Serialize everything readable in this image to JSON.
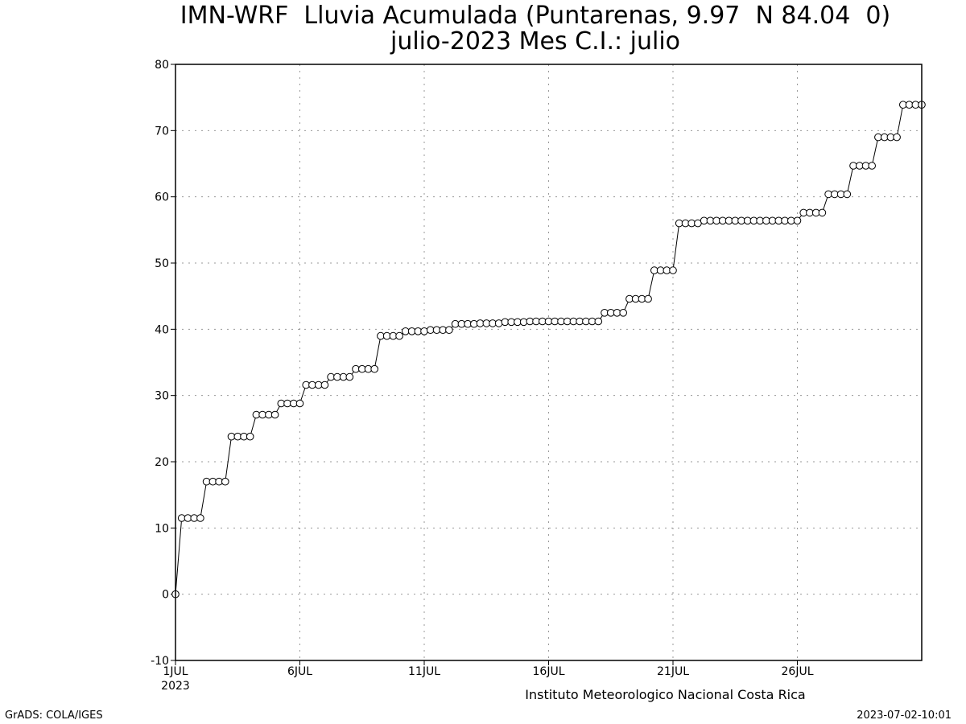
{
  "title_line1": "IMN-WRF  Lluvia Acumulada (Puntarenas, 9.97  N 84.04  0)",
  "title_line2": "julio-2023 Mes C.I.: julio",
  "footer_left": "GrADS: COLA/IGES",
  "footer_right": "2023-07-02-10:01",
  "chart_data": {
    "type": "line",
    "title": "IMN-WRF  Lluvia Acumulada (Puntarenas, 9.97  N 84.04  0)",
    "subtitle": "julio-2023 Mes C.I.: julio",
    "xlabel": "Instituto Meteorologico Nacional Costa Rica",
    "ylabel": "",
    "ylim": [
      -10,
      80
    ],
    "xlim": [
      0,
      30
    ],
    "x_unit": "days since 1 JUL 2023",
    "yticks": [
      -10,
      0,
      10,
      20,
      30,
      40,
      50,
      60,
      70,
      80
    ],
    "xticks": [
      {
        "x": 0,
        "label": "1JUL",
        "sublabel": "2023"
      },
      {
        "x": 5,
        "label": "6JUL"
      },
      {
        "x": 10,
        "label": "11JUL"
      },
      {
        "x": 15,
        "label": "16JUL"
      },
      {
        "x": 20,
        "label": "21JUL"
      },
      {
        "x": 25,
        "label": "26JUL"
      }
    ],
    "grid": true,
    "marker": "open-circle",
    "step_hours": 6,
    "series": [
      {
        "name": "",
        "values": [
          0,
          11.5,
          11.5,
          11.5,
          11.5,
          17,
          17,
          17,
          17,
          23.8,
          23.8,
          23.8,
          23.8,
          27.1,
          27.1,
          27.1,
          27.1,
          28.8,
          28.8,
          28.8,
          28.8,
          31.6,
          31.6,
          31.6,
          31.6,
          32.8,
          32.8,
          32.8,
          32.8,
          34,
          34,
          34,
          34,
          39,
          39,
          39,
          39,
          39.7,
          39.7,
          39.7,
          39.7,
          39.9,
          39.9,
          39.9,
          39.9,
          40.8,
          40.8,
          40.8,
          40.8,
          40.9,
          40.9,
          40.9,
          40.9,
          41.1,
          41.1,
          41.1,
          41.1,
          41.2,
          41.2,
          41.2,
          41.2,
          41.2,
          41.2,
          41.2,
          41.2,
          41.2,
          41.2,
          41.2,
          41.2,
          42.5,
          42.5,
          42.5,
          42.5,
          44.6,
          44.6,
          44.6,
          44.6,
          48.9,
          48.9,
          48.9,
          48.9,
          56,
          56,
          56,
          56,
          56.4,
          56.4,
          56.4,
          56.4,
          56.4,
          56.4,
          56.4,
          56.4,
          56.4,
          56.4,
          56.4,
          56.4,
          56.4,
          56.4,
          56.4,
          56.4,
          57.6,
          57.6,
          57.6,
          57.6,
          60.4,
          60.4,
          60.4,
          60.4,
          64.7,
          64.7,
          64.7,
          64.7,
          69,
          69,
          69,
          69,
          73.9,
          73.9,
          73.9,
          73.9
        ]
      }
    ]
  }
}
